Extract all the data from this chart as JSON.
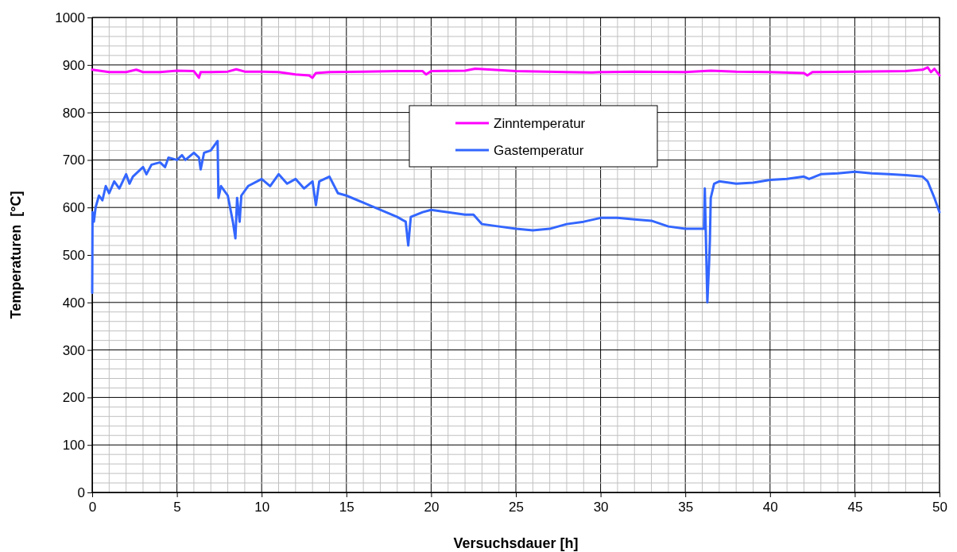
{
  "chart_data": {
    "type": "line",
    "xlabel": "Versuchsdauer [h]",
    "ylabel": "Temperaturen  [°C]",
    "xlim": [
      0,
      50
    ],
    "ylim": [
      0,
      1000
    ],
    "xticks": [
      0,
      {
        "value": 1,
        "label": null
      },
      {
        "value": 2,
        "label": null
      },
      {
        "value": 3,
        "label": null
      },
      {
        "value": 4,
        "label": null
      },
      5,
      {
        "value": 6,
        "label": null
      },
      {
        "value": 7,
        "label": null
      },
      {
        "value": 8,
        "label": null
      },
      {
        "value": 9,
        "label": null
      },
      10,
      {
        "value": 11,
        "label": null
      },
      {
        "value": 12,
        "label": null
      },
      {
        "value": 13,
        "label": null
      },
      {
        "value": 14,
        "label": null
      },
      15,
      {
        "value": 16,
        "label": null
      },
      {
        "value": 17,
        "label": null
      },
      {
        "value": 18,
        "label": null
      },
      {
        "value": 19,
        "label": null
      },
      20,
      {
        "value": 21,
        "label": null
      },
      {
        "value": 22,
        "label": null
      },
      {
        "value": 23,
        "label": null
      },
      {
        "value": 24,
        "label": null
      },
      25,
      {
        "value": 26,
        "label": null
      },
      {
        "value": 27,
        "label": null
      },
      {
        "value": 28,
        "label": null
      },
      {
        "value": 29,
        "label": null
      },
      30,
      {
        "value": 31,
        "label": null
      },
      {
        "value": 32,
        "label": null
      },
      {
        "value": 33,
        "label": null
      },
      {
        "value": 34,
        "label": null
      },
      35,
      {
        "value": 36,
        "label": null
      },
      {
        "value": 37,
        "label": null
      },
      {
        "value": 38,
        "label": null
      },
      {
        "value": 39,
        "label": null
      },
      40,
      {
        "value": 41,
        "label": null
      },
      {
        "value": 42,
        "label": null
      },
      {
        "value": 43,
        "label": null
      },
      {
        "value": 44,
        "label": null
      },
      45,
      {
        "value": 46,
        "label": null
      },
      {
        "value": 47,
        "label": null
      },
      {
        "value": 48,
        "label": null
      },
      {
        "value": 49,
        "label": null
      },
      50
    ],
    "yticks": [
      0,
      {
        "value": 20,
        "label": null
      },
      {
        "value": 40,
        "label": null
      },
      {
        "value": 60,
        "label": null
      },
      {
        "value": 80,
        "label": null
      },
      100,
      {
        "value": 120,
        "label": null
      },
      {
        "value": 140,
        "label": null
      },
      {
        "value": 160,
        "label": null
      },
      {
        "value": 180,
        "label": null
      },
      200,
      {
        "value": 220,
        "label": null
      },
      {
        "value": 240,
        "label": null
      },
      {
        "value": 260,
        "label": null
      },
      {
        "value": 280,
        "label": null
      },
      300,
      {
        "value": 320,
        "label": null
      },
      {
        "value": 340,
        "label": null
      },
      {
        "value": 360,
        "label": null
      },
      {
        "value": 380,
        "label": null
      },
      400,
      {
        "value": 420,
        "label": null
      },
      {
        "value": 440,
        "label": null
      },
      {
        "value": 460,
        "label": null
      },
      {
        "value": 480,
        "label": null
      },
      500,
      {
        "value": 520,
        "label": null
      },
      {
        "value": 540,
        "label": null
      },
      {
        "value": 560,
        "label": null
      },
      {
        "value": 580,
        "label": null
      },
      600,
      {
        "value": 620,
        "label": null
      },
      {
        "value": 640,
        "label": null
      },
      {
        "value": 660,
        "label": null
      },
      {
        "value": 680,
        "label": null
      },
      700,
      {
        "value": 720,
        "label": null
      },
      {
        "value": 740,
        "label": null
      },
      {
        "value": 760,
        "label": null
      },
      {
        "value": 780,
        "label": null
      },
      800,
      {
        "value": 820,
        "label": null
      },
      {
        "value": 840,
        "label": null
      },
      {
        "value": 860,
        "label": null
      },
      {
        "value": 880,
        "label": null
      },
      900,
      {
        "value": 920,
        "label": null
      },
      {
        "value": 940,
        "label": null
      },
      {
        "value": 960,
        "label": null
      },
      {
        "value": 980,
        "label": null
      },
      1000
    ],
    "grid": true,
    "legend": "top",
    "marker": "none",
    "line_style": "solid",
    "series": [
      {
        "name": "Zinntemperatur",
        "color": "#ff00ff",
        "x": [
          0,
          1,
          2,
          2.6,
          3,
          4,
          5,
          6,
          6.3,
          6.4,
          7,
          8,
          8.5,
          9,
          10,
          11,
          12,
          12.8,
          13,
          13.2,
          14,
          16,
          18,
          19.5,
          19.7,
          20,
          22,
          22.6,
          25,
          28,
          29.5,
          30,
          32,
          35,
          36.5,
          38,
          40,
          42,
          42.2,
          42.5,
          45,
          48,
          49,
          49.3,
          49.5,
          49.7,
          50
        ],
        "values": [
          890,
          885,
          885,
          890,
          885,
          885,
          888,
          887,
          873,
          885,
          885,
          886,
          891,
          886,
          886,
          885,
          880,
          878,
          873,
          883,
          885,
          886,
          887,
          887,
          880,
          887,
          888,
          892,
          887,
          885,
          884,
          885,
          886,
          885,
          888,
          886,
          885,
          883,
          878,
          885,
          886,
          887,
          890,
          895,
          885,
          892,
          878
        ]
      },
      {
        "name": "Gastemperatur",
        "color": "#3366ff",
        "x": [
          0,
          0.02,
          0.1,
          0.2,
          0.4,
          0.6,
          0.8,
          1,
          1.3,
          1.6,
          2,
          2.2,
          2.4,
          3,
          3.2,
          3.5,
          4,
          4.3,
          4.5,
          5,
          5.3,
          5.5,
          6,
          6.3,
          6.4,
          6.6,
          7,
          7.3,
          7.4,
          7.45,
          7.6,
          8,
          8.3,
          8.45,
          8.55,
          8.7,
          8.8,
          9.2,
          10,
          10.5,
          11,
          11.5,
          12,
          12.5,
          13,
          13.2,
          13.4,
          14,
          14.5,
          15,
          16,
          17,
          18,
          18.5,
          18.65,
          18.8,
          19.5,
          20,
          21,
          22,
          22.5,
          23,
          24,
          25,
          26,
          27,
          28,
          29,
          30,
          31,
          32,
          33,
          34,
          35,
          36,
          36.1,
          36.15,
          36.2,
          36.3,
          36.4,
          36.45,
          36.5,
          36.7,
          37,
          38,
          39,
          40,
          41,
          42,
          42.3,
          43,
          44,
          45,
          46,
          47,
          48,
          49,
          49.3,
          49.7,
          50
        ],
        "values": [
          420,
          590,
          570,
          600,
          625,
          615,
          645,
          630,
          655,
          640,
          670,
          650,
          665,
          685,
          670,
          690,
          695,
          685,
          705,
          700,
          710,
          700,
          715,
          705,
          680,
          715,
          720,
          735,
          740,
          620,
          645,
          625,
          570,
          535,
          620,
          570,
          625,
          645,
          660,
          645,
          670,
          650,
          660,
          640,
          655,
          605,
          655,
          665,
          630,
          625,
          610,
          595,
          580,
          570,
          520,
          580,
          590,
          595,
          590,
          585,
          585,
          565,
          560,
          555,
          552,
          555,
          565,
          570,
          578,
          578,
          575,
          572,
          560,
          555,
          555,
          555,
          640,
          560,
          400,
          480,
          530,
          620,
          650,
          655,
          650,
          652,
          658,
          660,
          665,
          660,
          670,
          672,
          675,
          672,
          670,
          668,
          665,
          655,
          620,
          590
        ]
      }
    ]
  }
}
